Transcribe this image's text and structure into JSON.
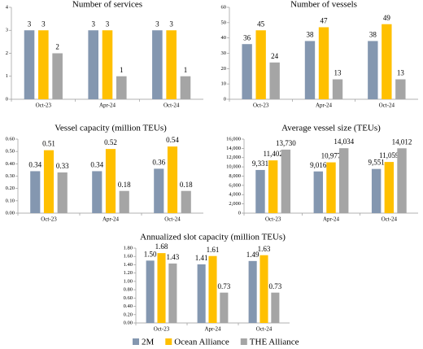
{
  "chart_data": [
    {
      "type": "bar",
      "title": "Number of services",
      "categories": [
        "Oct-23",
        "Apr-24",
        "Oct-24"
      ],
      "series": [
        {
          "color": "#8497b0",
          "values": [
            3,
            3,
            3
          ]
        },
        {
          "color": "#ffc000",
          "values": [
            3,
            3,
            3
          ]
        },
        {
          "color": "#a5a5a5",
          "values": [
            2,
            1,
            1
          ]
        }
      ],
      "ylim": [
        0,
        4
      ],
      "yticks": [
        0,
        1,
        2,
        3,
        4
      ]
    },
    {
      "type": "bar",
      "title": "Number of vessels",
      "categories": [
        "Oct-23",
        "Apr-24",
        "Oct-24"
      ],
      "series": [
        {
          "color": "#8497b0",
          "values": [
            36,
            38,
            38
          ]
        },
        {
          "color": "#ffc000",
          "values": [
            45,
            47,
            49
          ]
        },
        {
          "color": "#a5a5a5",
          "values": [
            24,
            13,
            13
          ]
        }
      ],
      "ylim": [
        0,
        60
      ],
      "yticks": [
        0,
        10,
        20,
        30,
        40,
        50,
        60
      ]
    },
    {
      "type": "bar",
      "title": "Vessel capacity (million TEUs)",
      "categories": [
        "Oct-23",
        "Apr-24",
        "Oct-24"
      ],
      "series": [
        {
          "color": "#8497b0",
          "values": [
            0.34,
            0.34,
            0.36
          ]
        },
        {
          "color": "#ffc000",
          "values": [
            0.51,
            0.52,
            0.54
          ]
        },
        {
          "color": "#a5a5a5",
          "values": [
            0.33,
            0.18,
            0.18
          ]
        }
      ],
      "ylim": [
        0,
        0.6
      ],
      "yticks": [
        {
          "value": 0,
          "label": "0.00"
        },
        {
          "value": 0.1,
          "label": "0.10"
        },
        {
          "value": 0.2,
          "label": "0.20"
        },
        {
          "value": 0.3,
          "label": "0.30"
        },
        {
          "value": 0.4,
          "label": "0.40"
        },
        {
          "value": 0.5,
          "label": "0.50"
        },
        {
          "value": 0.6,
          "label": "0.60"
        }
      ]
    },
    {
      "type": "bar",
      "title": "Average vessel size (TEUs)",
      "categories": [
        "Oct-23",
        "Apr-24",
        "Oct-24"
      ],
      "series": [
        {
          "color": "#8497b0",
          "values": [
            9331,
            9016,
            9551
          ],
          "value_labels": [
            "9,331",
            "9,016",
            "9,551"
          ]
        },
        {
          "color": "#ffc000",
          "values": [
            11402,
            10977,
            11059
          ],
          "value_labels": [
            "11,402",
            "10,977",
            "11,059"
          ]
        },
        {
          "color": "#a5a5a5",
          "values": [
            13730,
            14034,
            14012
          ],
          "value_labels": [
            "13,730",
            "14,034",
            "14,012"
          ]
        }
      ],
      "ylim": [
        0,
        16000
      ],
      "yticks": [
        0,
        {
          "value": 2000,
          "label": "2,000"
        },
        {
          "value": 4000,
          "label": "4,000"
        },
        {
          "value": 6000,
          "label": "6,000"
        },
        {
          "value": 8000,
          "label": "8,000"
        },
        {
          "value": 10000,
          "label": "10,000"
        },
        {
          "value": 12000,
          "label": "12,000"
        },
        {
          "value": 14000,
          "label": "14,000"
        },
        {
          "value": 16000,
          "label": "16,000"
        }
      ]
    },
    {
      "type": "bar",
      "title": "Annualized slot capacity (million TEUs)",
      "categories": [
        "Oct-23",
        "Apr-24",
        "Oct-24"
      ],
      "series": [
        {
          "name": "2M",
          "color": "#8497b0",
          "values": [
            1.5,
            1.41,
            1.49
          ],
          "value_labels": [
            "1.50",
            "1.41",
            "1.49"
          ]
        },
        {
          "name": "Ocean Alliance",
          "color": "#ffc000",
          "values": [
            1.68,
            1.61,
            1.63
          ],
          "value_labels": [
            "1.68",
            "1.61",
            "1.63"
          ]
        },
        {
          "name": "THE Alliance",
          "color": "#a5a5a5",
          "values": [
            1.43,
            0.73,
            0.73
          ],
          "value_labels": [
            "1.43",
            "0.73",
            "0.73"
          ]
        }
      ],
      "ylim": [
        0,
        1.8
      ],
      "yticks": [
        {
          "value": 0,
          "label": "0.00"
        },
        {
          "value": 0.2,
          "label": "0.20"
        },
        {
          "value": 0.4,
          "label": "0.40"
        },
        {
          "value": 0.6,
          "label": "0.60"
        },
        {
          "value": 0.8,
          "label": "0.80"
        },
        {
          "value": 1,
          "label": "1.00"
        },
        {
          "value": 1.2,
          "label": "1.20"
        },
        {
          "value": 1.4,
          "label": "1.40"
        },
        {
          "value": 1.6,
          "label": "1.60"
        },
        {
          "value": 1.8,
          "label": "1.80"
        }
      ]
    }
  ]
}
